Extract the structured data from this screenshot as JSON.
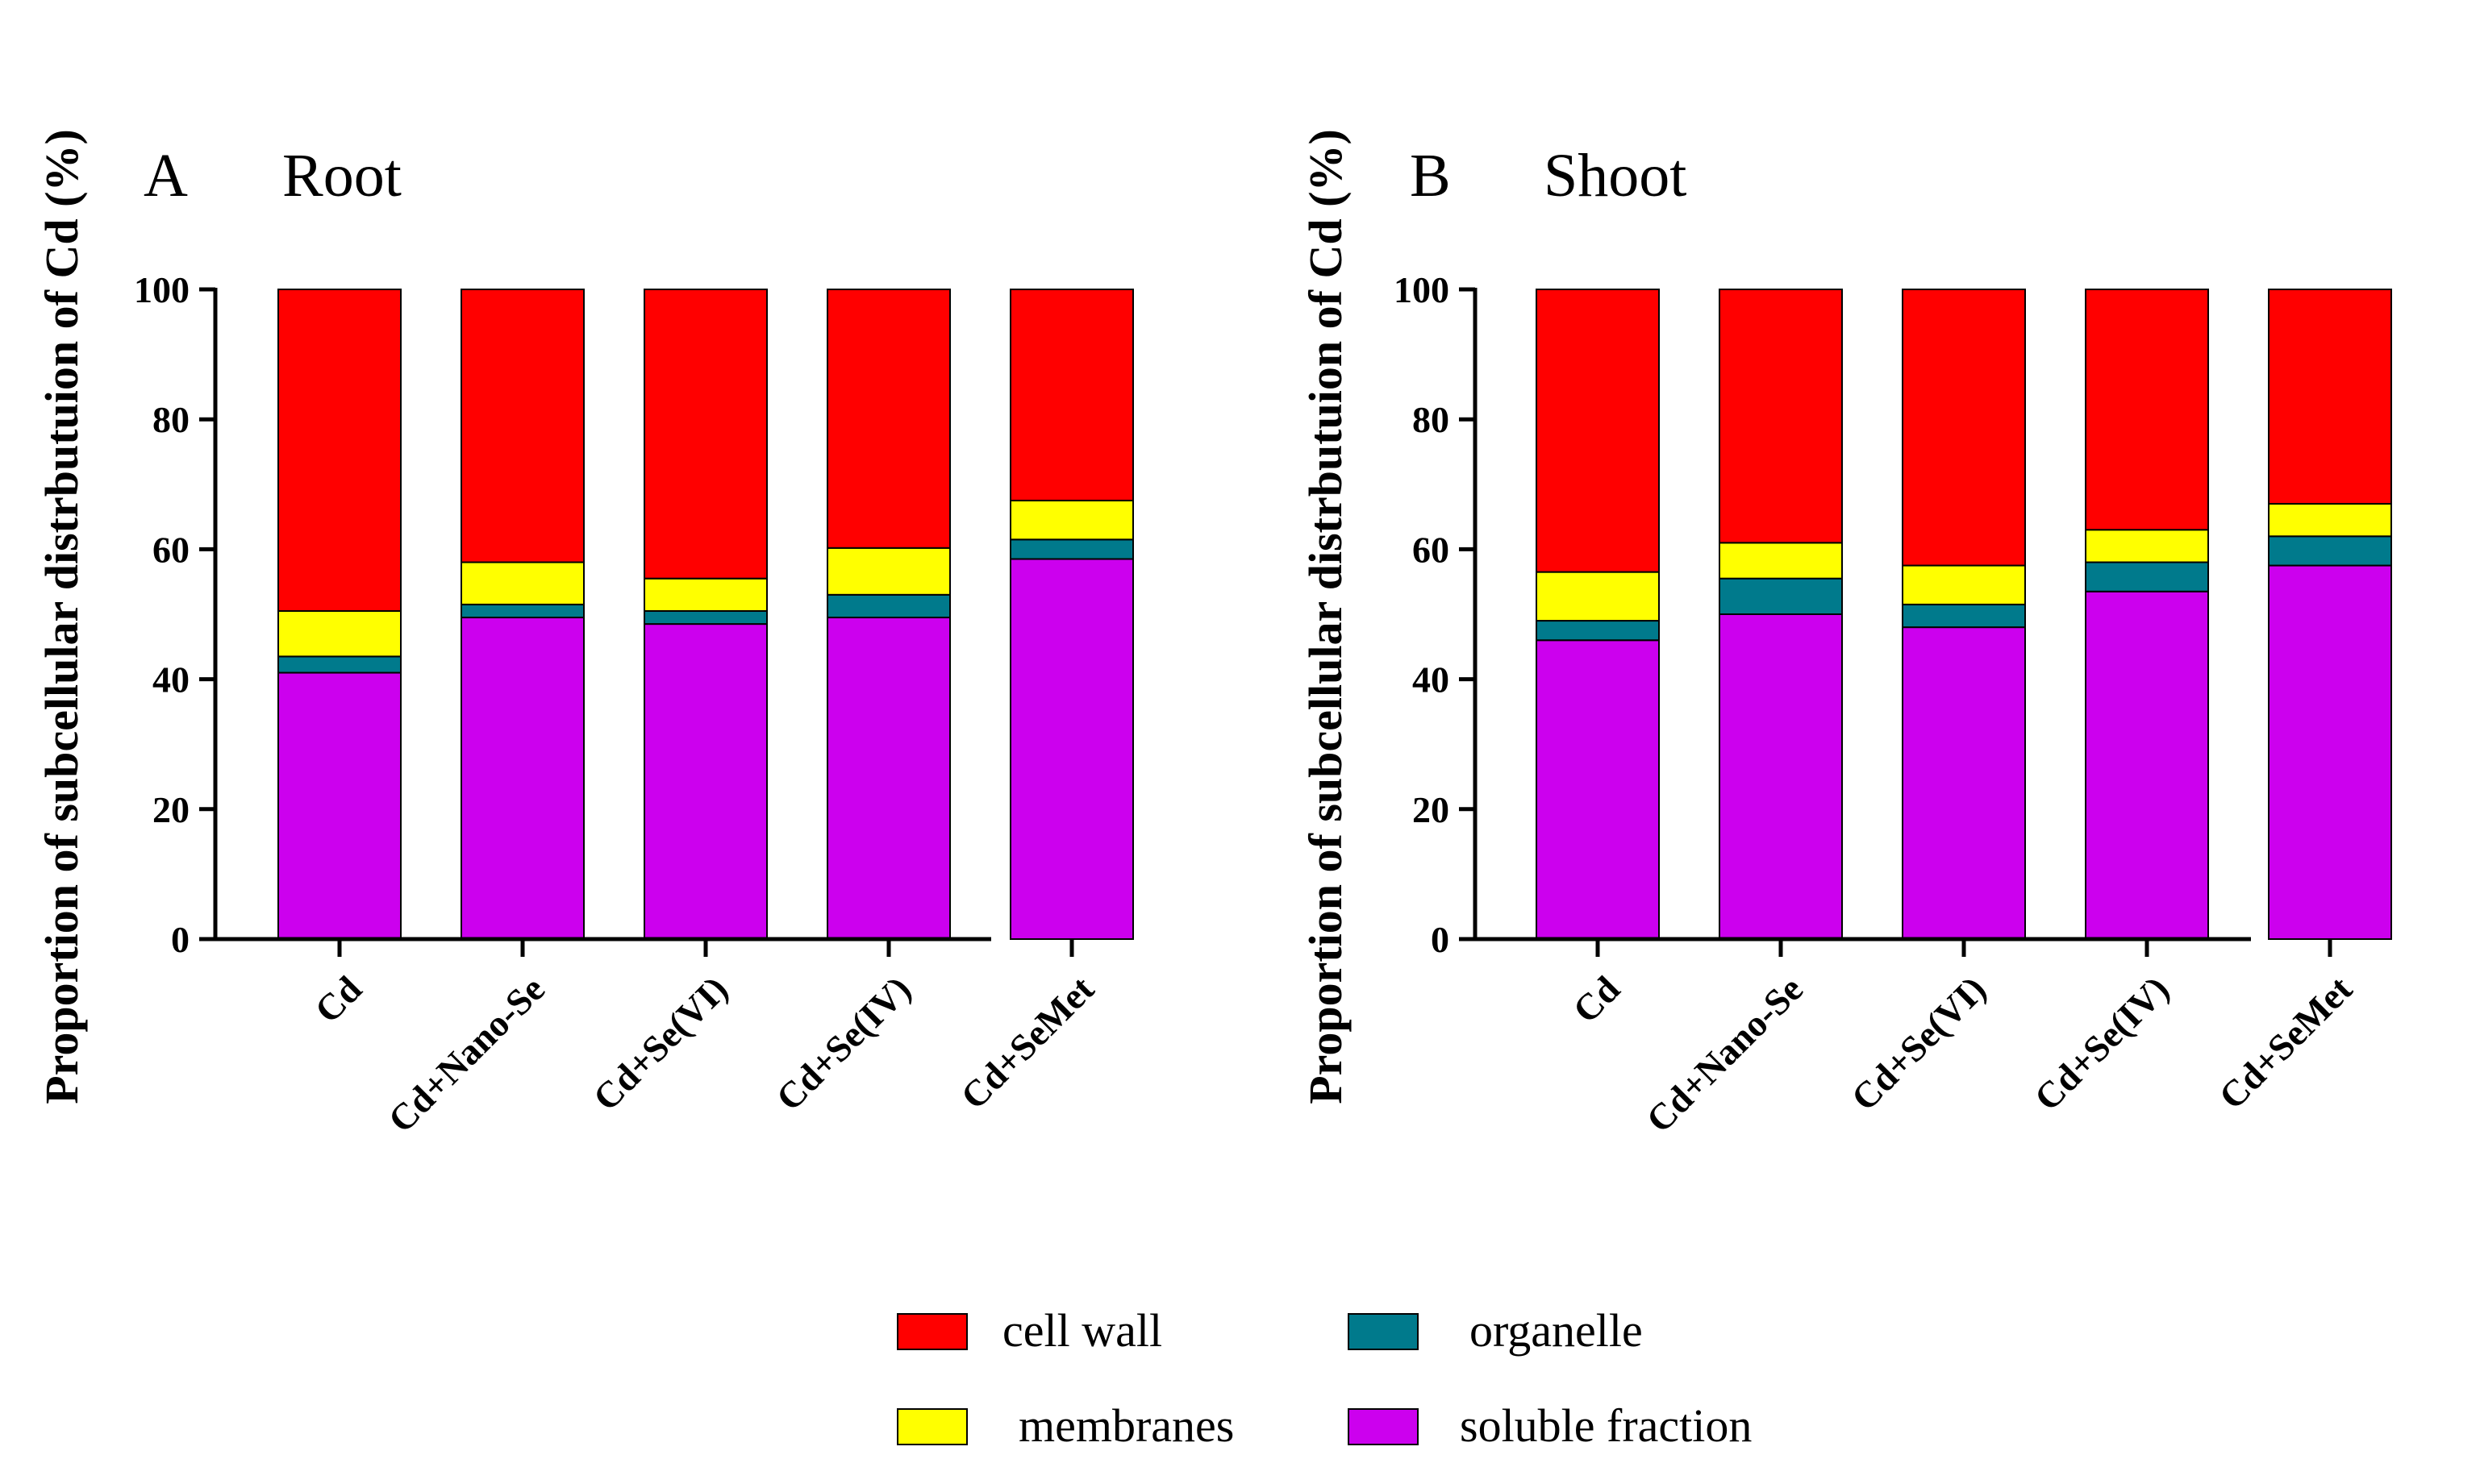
{
  "legend": [
    {
      "key": "cell_wall",
      "label": "cell wall",
      "color": "#ff0000"
    },
    {
      "key": "organelle",
      "label": "organelle",
      "color": "#007a8c"
    },
    {
      "key": "membranes",
      "label": "membranes",
      "color": "#ffff00"
    },
    {
      "key": "soluble",
      "label": "soluble fraction",
      "color": "#cc00ee"
    }
  ],
  "chart_data": [
    {
      "type": "bar",
      "stacked": true,
      "panel_letter": "A",
      "title": "Root",
      "ylabel": "Proportion of subcellular distrbutuion of Cd (%)",
      "xlabel": "",
      "ylim": [
        0,
        100
      ],
      "yticks": [
        "0",
        "20",
        "40",
        "60",
        "80",
        "100"
      ],
      "categories": [
        "Cd",
        "Cd+Nano-Se",
        "Cd+Se(VI)",
        "Cd+Se(IV)",
        "Cd+SeMet"
      ],
      "series": [
        {
          "name": "soluble fraction",
          "values": [
            41,
            49.5,
            48.5,
            49.5,
            58.5
          ]
        },
        {
          "name": "organelle",
          "values": [
            2.5,
            2,
            2,
            3.5,
            3
          ]
        },
        {
          "name": "membranes",
          "values": [
            7,
            6.5,
            5,
            7.2,
            6
          ]
        },
        {
          "name": "cell wall",
          "values": [
            49.5,
            42,
            44.5,
            39.8,
            32.5
          ]
        }
      ]
    },
    {
      "type": "bar",
      "stacked": true,
      "panel_letter": "B",
      "title": "Shoot",
      "ylabel": "Proportion of subcellular distrbutuion of Cd (%)",
      "xlabel": "",
      "ylim": [
        0,
        100
      ],
      "yticks": [
        "0",
        "20",
        "40",
        "60",
        "80",
        "100"
      ],
      "categories": [
        "Cd",
        "Cd+Nano-Se",
        "Cd+Se(VI)",
        "Cd+Se(IV)",
        "Cd+SeMet"
      ],
      "series": [
        {
          "name": "soluble fraction",
          "values": [
            46,
            50,
            48,
            53.5,
            57.5
          ]
        },
        {
          "name": "organelle",
          "values": [
            3,
            5.5,
            3.5,
            4.5,
            4.5
          ]
        },
        {
          "name": "membranes",
          "values": [
            7.5,
            5.5,
            6,
            5,
            5
          ]
        },
        {
          "name": "cell wall",
          "values": [
            43.5,
            39,
            42.5,
            37,
            33
          ]
        }
      ]
    }
  ]
}
